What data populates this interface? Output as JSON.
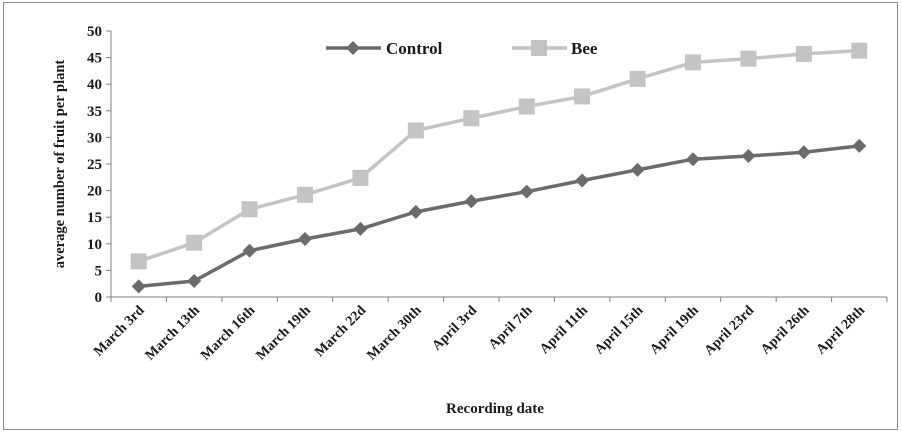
{
  "chart_data": {
    "type": "line",
    "title": "",
    "xlabel": "Recording date",
    "ylabel": "average number of fruit per plant",
    "categories": [
      "March 3rd",
      "March 13th",
      "March 16th",
      "March 19th",
      "March 22d",
      "March 30th",
      "April 3rd",
      "April 7th",
      "April 11th",
      "April 15th",
      "April 19th",
      "April 23rd",
      "April 26th",
      "April 28th"
    ],
    "ylim": [
      0,
      50
    ],
    "yticks": [
      0,
      5,
      10,
      15,
      20,
      25,
      30,
      35,
      40,
      45,
      50
    ],
    "grid": false,
    "legend_position": "top-center",
    "series": [
      {
        "name": "Control",
        "marker": "diamond",
        "color": "#6b6b6b",
        "values": [
          2,
          3,
          8.7,
          10.9,
          12.8,
          16,
          18,
          19.8,
          21.9,
          23.9,
          25.9,
          26.5,
          27.2,
          28.4
        ]
      },
      {
        "name": "Bee",
        "marker": "square",
        "color": "#c4c4c4",
        "values": [
          6.7,
          10.2,
          16.5,
          19.2,
          22.4,
          31.3,
          33.6,
          35.8,
          37.7,
          41,
          44.1,
          44.8,
          45.7,
          46.3
        ]
      }
    ]
  }
}
